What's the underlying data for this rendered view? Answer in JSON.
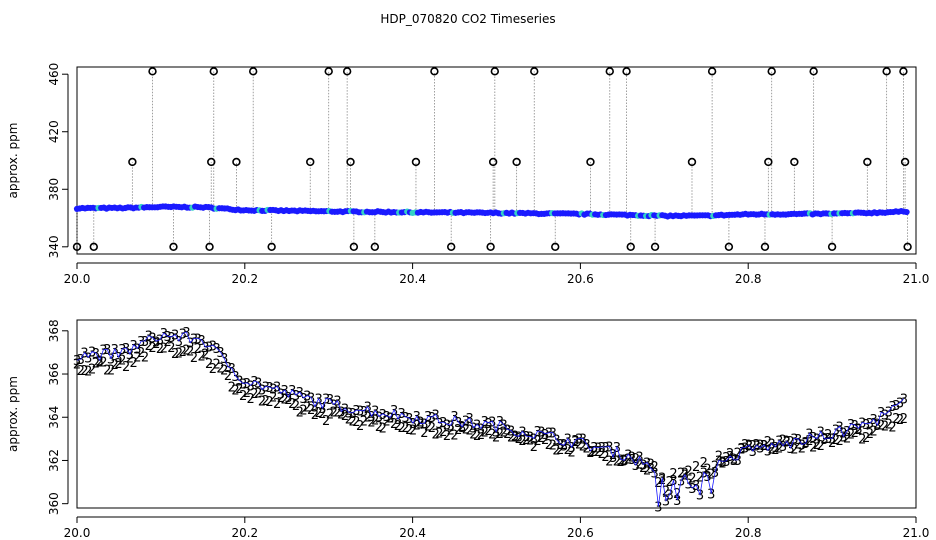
{
  "title": "HDP_070820  CO2 Timeseries",
  "chart_data": [
    {
      "type": "scatter",
      "title": "",
      "ylabel": "approx. ppm",
      "xlim": [
        20.0,
        21.0
      ],
      "ylim": [
        335,
        465
      ],
      "xticks": [
        20.0,
        20.2,
        20.4,
        20.6,
        20.8,
        21.0
      ],
      "xtick_labels": [
        "20.0",
        "20.2",
        "20.4",
        "20.6",
        "20.8",
        "21.0"
      ],
      "yticks": [
        340,
        380,
        420,
        460
      ],
      "ytick_labels": [
        "340",
        "380",
        "420",
        "460"
      ],
      "colors": {
        "points": "#1a1aff",
        "fill_points": "#33d1c6",
        "outliers": "#000000",
        "spikes": "#888888"
      },
      "series": [
        {
          "marker": "filled-circle",
          "baseline": [
            [
              20.0,
              366.8
            ],
            [
              20.05,
              366.9
            ],
            [
              20.1,
              367.7
            ],
            [
              20.15,
              367.5
            ],
            [
              20.2,
              365.5
            ],
            [
              20.3,
              364.6
            ],
            [
              20.4,
              364.0
            ],
            [
              20.5,
              363.5
            ],
            [
              20.6,
              362.8
            ],
            [
              20.65,
              362.2
            ],
            [
              20.7,
              361.5
            ],
            [
              20.75,
              361.6
            ],
            [
              20.8,
              362.6
            ],
            [
              20.85,
              362.7
            ],
            [
              20.9,
              363.0
            ],
            [
              20.95,
              363.7
            ],
            [
              20.99,
              364.6
            ]
          ]
        },
        {
          "marker": "open-circle",
          "spikes": [
            [
              20.0,
              340
            ],
            [
              20.02,
              340
            ],
            [
              20.066,
              399
            ],
            [
              20.09,
              462
            ],
            [
              20.115,
              340
            ],
            [
              20.158,
              340
            ],
            [
              20.16,
              399
            ],
            [
              20.163,
              462
            ],
            [
              20.19,
              399
            ],
            [
              20.21,
              462
            ],
            [
              20.232,
              340
            ],
            [
              20.278,
              399
            ],
            [
              20.3,
              462
            ],
            [
              20.322,
              462
            ],
            [
              20.326,
              399
            ],
            [
              20.33,
              340
            ],
            [
              20.355,
              340
            ],
            [
              20.404,
              399
            ],
            [
              20.426,
              462
            ],
            [
              20.446,
              340
            ],
            [
              20.493,
              340
            ],
            [
              20.496,
              399
            ],
            [
              20.498,
              462
            ],
            [
              20.524,
              399
            ],
            [
              20.545,
              462
            ],
            [
              20.57,
              340
            ],
            [
              20.612,
              399
            ],
            [
              20.635,
              462
            ],
            [
              20.655,
              462
            ],
            [
              20.66,
              340
            ],
            [
              20.689,
              340
            ],
            [
              20.733,
              399
            ],
            [
              20.757,
              462
            ],
            [
              20.777,
              340
            ],
            [
              20.82,
              340
            ],
            [
              20.824,
              399
            ],
            [
              20.828,
              462
            ],
            [
              20.855,
              399
            ],
            [
              20.878,
              462
            ],
            [
              20.9,
              340
            ],
            [
              20.942,
              399
            ],
            [
              20.965,
              462
            ],
            [
              20.985,
              462
            ],
            [
              20.987,
              399
            ],
            [
              20.99,
              340
            ]
          ]
        }
      ]
    },
    {
      "type": "scatter",
      "title": "",
      "ylabel": "approx. ppm",
      "xlim": [
        20.0,
        21.0
      ],
      "ylim": [
        359.8,
        368.5
      ],
      "xticks": [
        20.0,
        20.2,
        20.4,
        20.6,
        20.8,
        21.0
      ],
      "xtick_labels": [
        "20.0",
        "20.2",
        "20.4",
        "20.6",
        "20.8",
        "21.0"
      ],
      "yticks": [
        360,
        362,
        364,
        366,
        368
      ],
      "ytick_labels": [
        "360",
        "362",
        "364",
        "366",
        "368"
      ],
      "colors": {
        "series_2": "#22bb22",
        "series_3": "#1a1aff",
        "line_3": "#1a1aff"
      },
      "series": [
        {
          "marker": "2",
          "values": [
            [
              20.0,
              366.3
            ],
            [
              20.05,
              366.5
            ],
            [
              20.1,
              367.3
            ],
            [
              20.15,
              367.0
            ],
            [
              20.2,
              365.1
            ],
            [
              20.25,
              364.6
            ],
            [
              20.3,
              364.1
            ],
            [
              20.4,
              363.6
            ],
            [
              20.5,
              363.2
            ],
            [
              20.6,
              362.6
            ],
            [
              20.65,
              362.1
            ],
            [
              20.7,
              361.6
            ],
            [
              20.75,
              361.8
            ],
            [
              20.8,
              362.6
            ],
            [
              20.85,
              362.8
            ],
            [
              20.9,
              363.0
            ],
            [
              20.95,
              363.4
            ],
            [
              20.99,
              363.9
            ]
          ]
        },
        {
          "marker": "3",
          "values": [
            [
              20.0,
              366.9
            ],
            [
              20.05,
              366.9
            ],
            [
              20.1,
              367.8
            ],
            [
              20.15,
              367.6
            ],
            [
              20.2,
              365.7
            ],
            [
              20.25,
              365.1
            ],
            [
              20.3,
              364.6
            ],
            [
              20.4,
              364.0
            ],
            [
              20.5,
              363.6
            ],
            [
              20.6,
              362.8
            ],
            [
              20.65,
              362.3
            ],
            [
              20.7,
              361.5
            ],
            [
              20.75,
              361.5
            ],
            [
              20.8,
              362.5
            ],
            [
              20.85,
              362.8
            ],
            [
              20.9,
              363.2
            ],
            [
              20.95,
              363.8
            ],
            [
              20.99,
              364.8
            ]
          ]
        }
      ]
    }
  ]
}
